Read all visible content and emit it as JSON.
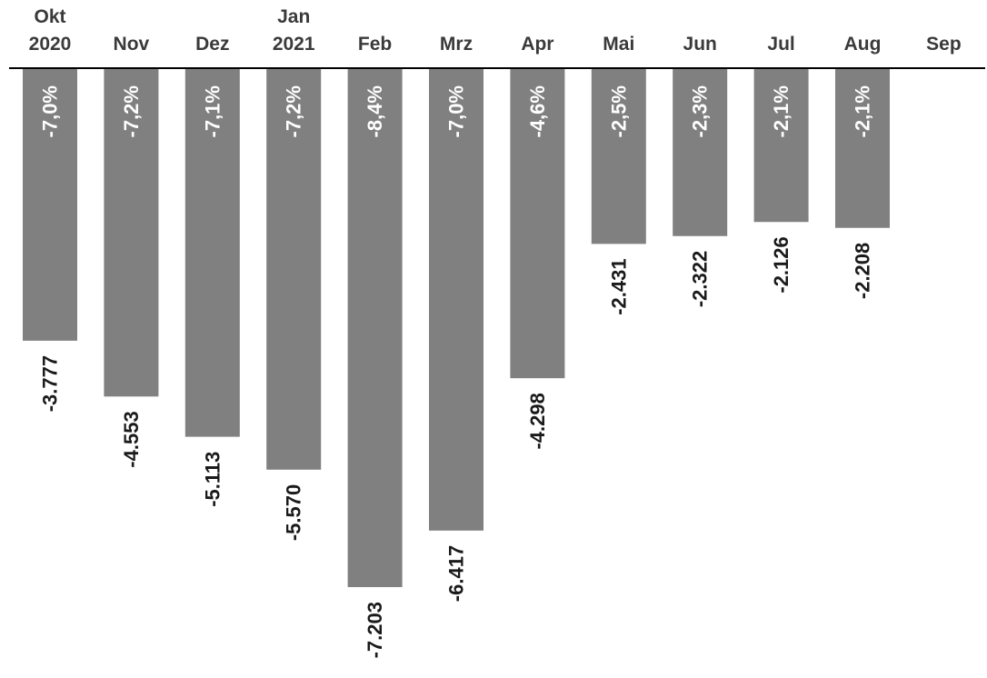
{
  "chart_data": {
    "type": "bar",
    "categories": [
      [
        "Okt",
        "2020"
      ],
      [
        "Nov"
      ],
      [
        "Dez"
      ],
      [
        "Jan",
        "2021"
      ],
      [
        "Feb"
      ],
      [
        "Mrz"
      ],
      [
        "Apr"
      ],
      [
        "Mai"
      ],
      [
        "Jun"
      ],
      [
        "Jul"
      ],
      [
        "Aug"
      ],
      [
        "Sep"
      ]
    ],
    "values": [
      -3777,
      -4553,
      -5113,
      -5570,
      -7203,
      -6417,
      -4298,
      -2431,
      -2322,
      -2126,
      -2208,
      null
    ],
    "value_labels": [
      "-3.777",
      "-4.553",
      "-5.113",
      "-5.570",
      "-7.203",
      "-6.417",
      "-4.298",
      "-2.431",
      "-2.322",
      "-2.126",
      "-2.208",
      ""
    ],
    "percent_labels": [
      "-7,0%",
      "-7,2%",
      "-7,1%",
      "-7,2%",
      "-8,4%",
      "-7,0%",
      "-4,6%",
      "-2,5%",
      "-2,3%",
      "-2,1%",
      "-2,1%",
      ""
    ],
    "title": "",
    "xlabel": "",
    "ylabel": "",
    "ylim": [
      -7203,
      0
    ],
    "grid": false,
    "legend": "none",
    "colors": {
      "bar": "#808080",
      "axis": "#000000",
      "percent_text": "#ffffff",
      "value_text": "#1a1a1a",
      "category_text": "#3a3a3a"
    }
  }
}
